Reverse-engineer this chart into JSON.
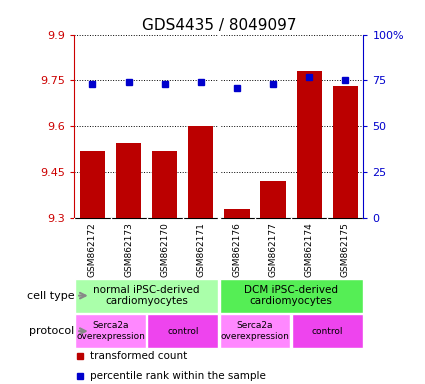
{
  "title": "GDS4435 / 8049097",
  "samples": [
    "GSM862172",
    "GSM862173",
    "GSM862170",
    "GSM862171",
    "GSM862176",
    "GSM862177",
    "GSM862174",
    "GSM862175"
  ],
  "bar_values": [
    9.52,
    9.545,
    9.52,
    9.6,
    9.33,
    9.42,
    9.78,
    9.73
  ],
  "percentile_values": [
    73,
    74,
    73,
    74,
    71,
    73,
    77,
    75
  ],
  "ylim_left": [
    9.3,
    9.9
  ],
  "ylim_right": [
    0,
    100
  ],
  "yticks_left": [
    9.3,
    9.45,
    9.6,
    9.75,
    9.9
  ],
  "yticks_right": [
    0,
    25,
    50,
    75,
    100
  ],
  "ytick_labels_right": [
    "0",
    "25",
    "50",
    "75",
    "100%"
  ],
  "bar_color": "#bb0000",
  "percentile_color": "#0000cc",
  "cell_type_groups": [
    {
      "label": "normal iPSC-derived\ncardiomyocytes",
      "start": 0,
      "end": 4,
      "color": "#aaffaa"
    },
    {
      "label": "DCM iPSC-derived\ncardiomyocytes",
      "start": 4,
      "end": 8,
      "color": "#55ee55"
    }
  ],
  "protocol_groups": [
    {
      "label": "Serca2a\noverexpression",
      "start": 0,
      "end": 2,
      "color": "#ff88ff"
    },
    {
      "label": "control",
      "start": 2,
      "end": 4,
      "color": "#ee44ee"
    },
    {
      "label": "Serca2a\noverexpression",
      "start": 4,
      "end": 6,
      "color": "#ff88ff"
    },
    {
      "label": "control",
      "start": 6,
      "end": 8,
      "color": "#ee44ee"
    }
  ],
  "cell_type_label": "cell type",
  "protocol_label": "protocol",
  "background_color": "#ffffff",
  "sample_bg_color": "#cccccc",
  "plot_bg_color": "#ffffff"
}
